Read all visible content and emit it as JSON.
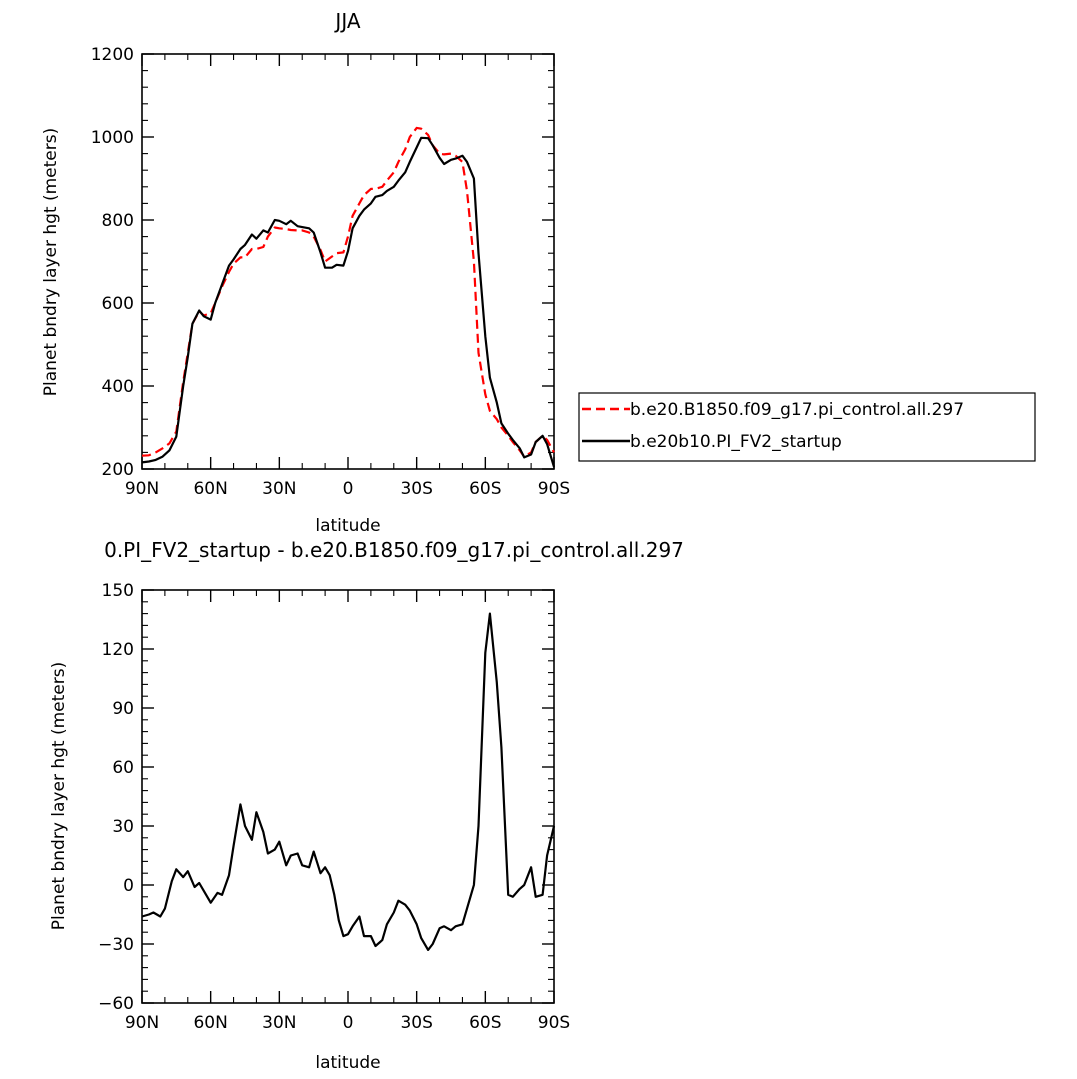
{
  "chart_data": [
    {
      "type": "line",
      "title": "JJA",
      "xlabel": "latitude",
      "ylabel": "Planet bndry layer hgt (meters)",
      "xlim": [
        90,
        -90
      ],
      "ylim": [
        200,
        1200
      ],
      "x_ticks": [
        90,
        60,
        30,
        0,
        -30,
        -60,
        -90
      ],
      "x_tick_labels": [
        "90N",
        "60N",
        "30N",
        "0",
        "30S",
        "60S",
        "90S"
      ],
      "y_ticks": [
        200,
        400,
        600,
        800,
        1000,
        1200
      ],
      "y_tick_labels": [
        "200",
        "400",
        "600",
        "800",
        "1000",
        "1200"
      ],
      "legend_position": "right",
      "series": [
        {
          "name": "b.e20.B1850.f09_g17.pi_control.all.297",
          "color": "#ff0000",
          "dash": "dashed",
          "x": [
            90,
            87,
            84,
            81,
            78,
            75,
            72,
            70,
            68,
            65,
            63,
            60,
            58,
            55,
            52,
            50,
            47,
            45,
            42,
            40,
            37,
            35,
            32,
            30,
            27,
            25,
            22,
            20,
            17,
            15,
            12,
            10,
            7,
            5,
            2,
            0,
            -2,
            -5,
            -7,
            -10,
            -12,
            -15,
            -17,
            -20,
            -22,
            -25,
            -27,
            -30,
            -32,
            -35,
            -37,
            -40,
            -42,
            -45,
            -47,
            -50,
            -52,
            -55,
            -57,
            -60,
            -62,
            -65,
            -67,
            -70,
            -72,
            -75,
            -77,
            -80,
            -82,
            -85,
            -87,
            -90
          ],
          "values": [
            232,
            233,
            240,
            250,
            262,
            290,
            410,
            480,
            550,
            580,
            570,
            575,
            600,
            640,
            675,
            695,
            710,
            710,
            730,
            730,
            735,
            760,
            782,
            780,
            778,
            776,
            775,
            775,
            770,
            760,
            728,
            700,
            712,
            720,
            722,
            760,
            810,
            840,
            860,
            875,
            875,
            880,
            895,
            915,
            940,
            970,
            1000,
            1022,
            1020,
            1005,
            980,
            960,
            958,
            960,
            955,
            940,
            870,
            700,
            480,
            380,
            340,
            320,
            300,
            280,
            265,
            245,
            230,
            240,
            265,
            280,
            270,
            240
          ]
        },
        {
          "name": "b.e20b10.PI_FV2_startup",
          "color": "#000000",
          "dash": "solid",
          "x": [
            90,
            87,
            84,
            81,
            78,
            75,
            72,
            70,
            68,
            65,
            63,
            60,
            58,
            55,
            52,
            50,
            47,
            45,
            42,
            40,
            37,
            35,
            32,
            30,
            27,
            25,
            22,
            20,
            17,
            15,
            12,
            10,
            7,
            5,
            2,
            0,
            -2,
            -5,
            -7,
            -10,
            -12,
            -15,
            -17,
            -20,
            -22,
            -25,
            -27,
            -30,
            -32,
            -35,
            -37,
            -40,
            -42,
            -45,
            -47,
            -50,
            -52,
            -55,
            -57,
            -60,
            -62,
            -65,
            -67,
            -70,
            -72,
            -75,
            -77,
            -80,
            -82,
            -85,
            -87,
            -90
          ],
          "values": [
            216,
            218,
            222,
            230,
            245,
            278,
            400,
            470,
            550,
            582,
            568,
            560,
            600,
            645,
            690,
            705,
            730,
            740,
            765,
            755,
            775,
            770,
            800,
            798,
            790,
            798,
            785,
            783,
            780,
            770,
            722,
            685,
            685,
            692,
            690,
            725,
            780,
            810,
            825,
            840,
            856,
            860,
            870,
            880,
            895,
            915,
            940,
            975,
            998,
            997,
            980,
            950,
            935,
            945,
            948,
            955,
            940,
            900,
            720,
            520,
            420,
            360,
            310,
            285,
            270,
            250,
            228,
            235,
            265,
            280,
            260,
            205
          ]
        }
      ]
    },
    {
      "type": "line",
      "title": "0.PI_FV2_startup - b.e20.B1850.f09_g17.pi_control.all.297",
      "xlabel": "latitude",
      "ylabel": "Planet bndry layer hgt (meters)",
      "xlim": [
        90,
        -90
      ],
      "ylim": [
        -60,
        150
      ],
      "x_ticks": [
        90,
        60,
        30,
        0,
        -30,
        -60,
        -90
      ],
      "x_tick_labels": [
        "90N",
        "60N",
        "30N",
        "0",
        "30S",
        "60S",
        "90S"
      ],
      "y_ticks": [
        -60,
        -30,
        0,
        30,
        60,
        90,
        120,
        150
      ],
      "y_tick_labels": [
        "−60",
        "−30",
        "0",
        "30",
        "60",
        "90",
        "120",
        "150"
      ],
      "series": [
        {
          "color": "#000000",
          "x": [
            90,
            87,
            85,
            82,
            80,
            77,
            75,
            72,
            70,
            67,
            65,
            62,
            60,
            57,
            55,
            52,
            50,
            47,
            45,
            42,
            40,
            37,
            35,
            32,
            30,
            27,
            25,
            22,
            20,
            17,
            15,
            12,
            10,
            8,
            6,
            4,
            2,
            0,
            -2,
            -5,
            -7,
            -10,
            -12,
            -15,
            -17,
            -20,
            -22,
            -25,
            -27,
            -30,
            -32,
            -35,
            -37,
            -40,
            -42,
            -45,
            -47,
            -50,
            -52,
            -55,
            -57,
            -60,
            -62,
            -65,
            -67,
            -70,
            -72,
            -75,
            -77,
            -80,
            -82,
            -85,
            -87,
            -90
          ],
          "values": [
            -16,
            -15,
            -14,
            -16,
            -12,
            2,
            8,
            4,
            7,
            -1,
            1,
            -5,
            -9,
            -4,
            -5,
            5,
            20,
            41,
            30,
            23,
            37,
            27,
            16,
            18,
            22,
            10,
            15,
            16,
            10,
            9,
            17,
            6,
            9,
            5,
            -5,
            -18,
            -26,
            -25,
            -21,
            -16,
            -26,
            -26,
            -31,
            -28,
            -20,
            -14,
            -8,
            -10,
            -13,
            -20,
            -27,
            -33,
            -30,
            -22,
            -21,
            -23,
            -21,
            -20,
            -12,
            0,
            30,
            118,
            138,
            103,
            70,
            -5,
            -6,
            -2,
            0,
            9,
            -6,
            -5,
            15,
            30
          ]
        }
      ]
    }
  ]
}
